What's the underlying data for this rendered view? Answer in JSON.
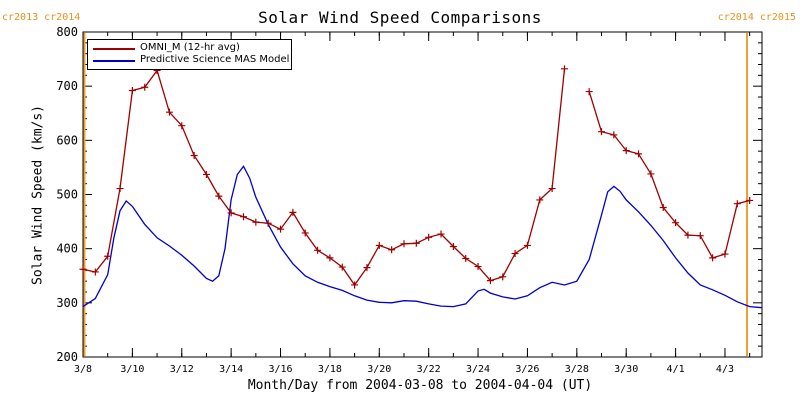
{
  "chart_data": {
    "type": "line",
    "title": "Solar Wind Speed Comparisons",
    "xlabel": "Month/Day from 2004-03-08 to 2004-04-04 (UT)",
    "ylabel": "Solar Wind Speed (km/s)",
    "xlim": [
      "2004-03-08",
      "2004-04-04 12:00"
    ],
    "ylim": [
      200,
      800
    ],
    "x_tick_labels": [
      "3/8",
      "3/10",
      "3/12",
      "3/14",
      "3/16",
      "3/18",
      "3/20",
      "3/22",
      "3/24",
      "3/26",
      "3/28",
      "3/30",
      "4/1",
      "4/3"
    ],
    "x_tick_dates": [
      "2004-03-08",
      "2004-03-10",
      "2004-03-12",
      "2004-03-14",
      "2004-03-16",
      "2004-03-18",
      "2004-03-20",
      "2004-03-22",
      "2004-03-24",
      "2004-03-26",
      "2004-03-28",
      "2004-03-30",
      "2004-04-01",
      "2004-04-03"
    ],
    "y_tick_labels": [
      "200",
      "300",
      "400",
      "500",
      "600",
      "700",
      "800"
    ],
    "y_ticks": [
      200,
      300,
      400,
      500,
      600,
      700,
      800
    ],
    "legend_position": "top-left",
    "grid": false,
    "carrington_markers": [
      {
        "label": "cr2013 cr2014",
        "side": "left",
        "date": "2004-03-08 00:00",
        "color": "#f0a030"
      },
      {
        "label": "cr2014 cr2015",
        "side": "right",
        "date": "2004-04-04 12:00",
        "color": "#f0a030"
      }
    ],
    "series": [
      {
        "name": "OMNI_M (12-hr avg)",
        "color": "#a00000",
        "marker": "plus",
        "segments": [
          [
            [
              "2004-03-08 00:00",
              362
            ],
            [
              "2004-03-08 12:00",
              357
            ],
            [
              "2004-03-09 00:00",
              386
            ],
            [
              "2004-03-09 12:00",
              511
            ],
            [
              "2004-03-10 00:00",
              692
            ],
            [
              "2004-03-10 12:00",
              698
            ],
            [
              "2004-03-11 00:00",
              729
            ],
            [
              "2004-03-11 12:00",
              652
            ],
            [
              "2004-03-12 00:00",
              627
            ],
            [
              "2004-03-12 12:00",
              572
            ],
            [
              "2004-03-13 00:00",
              537
            ],
            [
              "2004-03-13 12:00",
              497
            ],
            [
              "2004-03-14 00:00",
              466
            ],
            [
              "2004-03-14 12:00",
              459
            ],
            [
              "2004-03-15 00:00",
              449
            ],
            [
              "2004-03-15 12:00",
              447
            ],
            [
              "2004-03-16 00:00",
              436
            ],
            [
              "2004-03-16 12:00",
              467
            ],
            [
              "2004-03-17 00:00",
              429
            ],
            [
              "2004-03-17 12:00",
              397
            ],
            [
              "2004-03-18 00:00",
              383
            ],
            [
              "2004-03-18 12:00",
              366
            ],
            [
              "2004-03-19 00:00",
              333
            ],
            [
              "2004-03-19 12:00",
              365
            ],
            [
              "2004-03-20 00:00",
              406
            ],
            [
              "2004-03-20 12:00",
              398
            ],
            [
              "2004-03-21 00:00",
              409
            ],
            [
              "2004-03-21 12:00",
              410
            ],
            [
              "2004-03-22 00:00",
              421
            ],
            [
              "2004-03-22 12:00",
              427
            ],
            [
              "2004-03-23 00:00",
              404
            ],
            [
              "2004-03-23 12:00",
              382
            ],
            [
              "2004-03-24 00:00",
              367
            ],
            [
              "2004-03-24 12:00",
              341
            ],
            [
              "2004-03-25 00:00",
              348
            ],
            [
              "2004-03-25 12:00",
              391
            ],
            [
              "2004-03-26 00:00",
              406
            ],
            [
              "2004-03-26 12:00",
              490
            ],
            [
              "2004-03-27 00:00",
              511
            ],
            [
              "2004-03-27 12:00",
              732
            ]
          ],
          [
            [
              "2004-03-28 12:00",
              690
            ],
            [
              "2004-03-29 00:00",
              616
            ],
            [
              "2004-03-29 12:00",
              610
            ],
            [
              "2004-03-30 00:00",
              581
            ],
            [
              "2004-03-30 12:00",
              575
            ],
            [
              "2004-03-31 00:00",
              538
            ],
            [
              "2004-03-31 12:00",
              476
            ],
            [
              "2004-04-01 00:00",
              448
            ],
            [
              "2004-04-01 12:00",
              425
            ],
            [
              "2004-04-02 00:00",
              424
            ],
            [
              "2004-04-02 12:00",
              383
            ],
            [
              "2004-04-03 00:00",
              390
            ],
            [
              "2004-04-03 12:00",
              483
            ],
            [
              "2004-04-04 00:00",
              489
            ]
          ]
        ]
      },
      {
        "name": "Predictive Science MAS Model",
        "color": "#0000cc",
        "marker": "none",
        "segments": [
          [
            [
              "2004-03-08 00:00",
              293
            ],
            [
              "2004-03-08 12:00",
              308
            ],
            [
              "2004-03-09 00:00",
              352
            ],
            [
              "2004-03-09 06:00",
              420
            ],
            [
              "2004-03-09 12:00",
              470
            ],
            [
              "2004-03-09 18:00",
              488
            ],
            [
              "2004-03-10 00:00",
              478
            ],
            [
              "2004-03-10 12:00",
              445
            ],
            [
              "2004-03-11 00:00",
              420
            ],
            [
              "2004-03-11 12:00",
              405
            ],
            [
              "2004-03-12 00:00",
              388
            ],
            [
              "2004-03-12 12:00",
              368
            ],
            [
              "2004-03-13 00:00",
              345
            ],
            [
              "2004-03-13 06:00",
              340
            ],
            [
              "2004-03-13 12:00",
              350
            ],
            [
              "2004-03-13 18:00",
              400
            ],
            [
              "2004-03-14 00:00",
              490
            ],
            [
              "2004-03-14 06:00",
              537
            ],
            [
              "2004-03-14 12:00",
              552
            ],
            [
              "2004-03-14 18:00",
              530
            ],
            [
              "2004-03-15 00:00",
              495
            ],
            [
              "2004-03-15 12:00",
              445
            ],
            [
              "2004-03-16 00:00",
              403
            ],
            [
              "2004-03-16 12:00",
              372
            ],
            [
              "2004-03-17 00:00",
              350
            ],
            [
              "2004-03-17 12:00",
              338
            ],
            [
              "2004-03-18 00:00",
              330
            ],
            [
              "2004-03-18 12:00",
              323
            ],
            [
              "2004-03-19 00:00",
              313
            ],
            [
              "2004-03-19 12:00",
              305
            ],
            [
              "2004-03-20 00:00",
              301
            ],
            [
              "2004-03-20 12:00",
              300
            ],
            [
              "2004-03-21 00:00",
              304
            ],
            [
              "2004-03-21 12:00",
              303
            ],
            [
              "2004-03-22 00:00",
              298
            ],
            [
              "2004-03-22 12:00",
              294
            ],
            [
              "2004-03-23 00:00",
              293
            ],
            [
              "2004-03-23 12:00",
              298
            ],
            [
              "2004-03-24 00:00",
              322
            ],
            [
              "2004-03-24 06:00",
              325
            ],
            [
              "2004-03-24 12:00",
              318
            ],
            [
              "2004-03-25 00:00",
              311
            ],
            [
              "2004-03-25 12:00",
              307
            ],
            [
              "2004-03-26 00:00",
              313
            ],
            [
              "2004-03-26 12:00",
              328
            ],
            [
              "2004-03-27 00:00",
              338
            ],
            [
              "2004-03-27 12:00",
              333
            ],
            [
              "2004-03-28 00:00",
              340
            ],
            [
              "2004-03-28 12:00",
              380
            ],
            [
              "2004-03-29 00:00",
              462
            ],
            [
              "2004-03-29 06:00",
              505
            ],
            [
              "2004-03-29 12:00",
              515
            ],
            [
              "2004-03-29 18:00",
              506
            ],
            [
              "2004-03-30 00:00",
              490
            ],
            [
              "2004-03-30 12:00",
              468
            ],
            [
              "2004-03-31 00:00",
              443
            ],
            [
              "2004-03-31 12:00",
              415
            ],
            [
              "2004-04-01 00:00",
              383
            ],
            [
              "2004-04-01 12:00",
              355
            ],
            [
              "2004-04-02 00:00",
              333
            ],
            [
              "2004-04-02 12:00",
              324
            ],
            [
              "2004-04-03 00:00",
              314
            ],
            [
              "2004-04-03 12:00",
              302
            ],
            [
              "2004-04-04 00:00",
              293
            ],
            [
              "2004-04-04 12:00",
              291
            ]
          ]
        ]
      }
    ]
  }
}
